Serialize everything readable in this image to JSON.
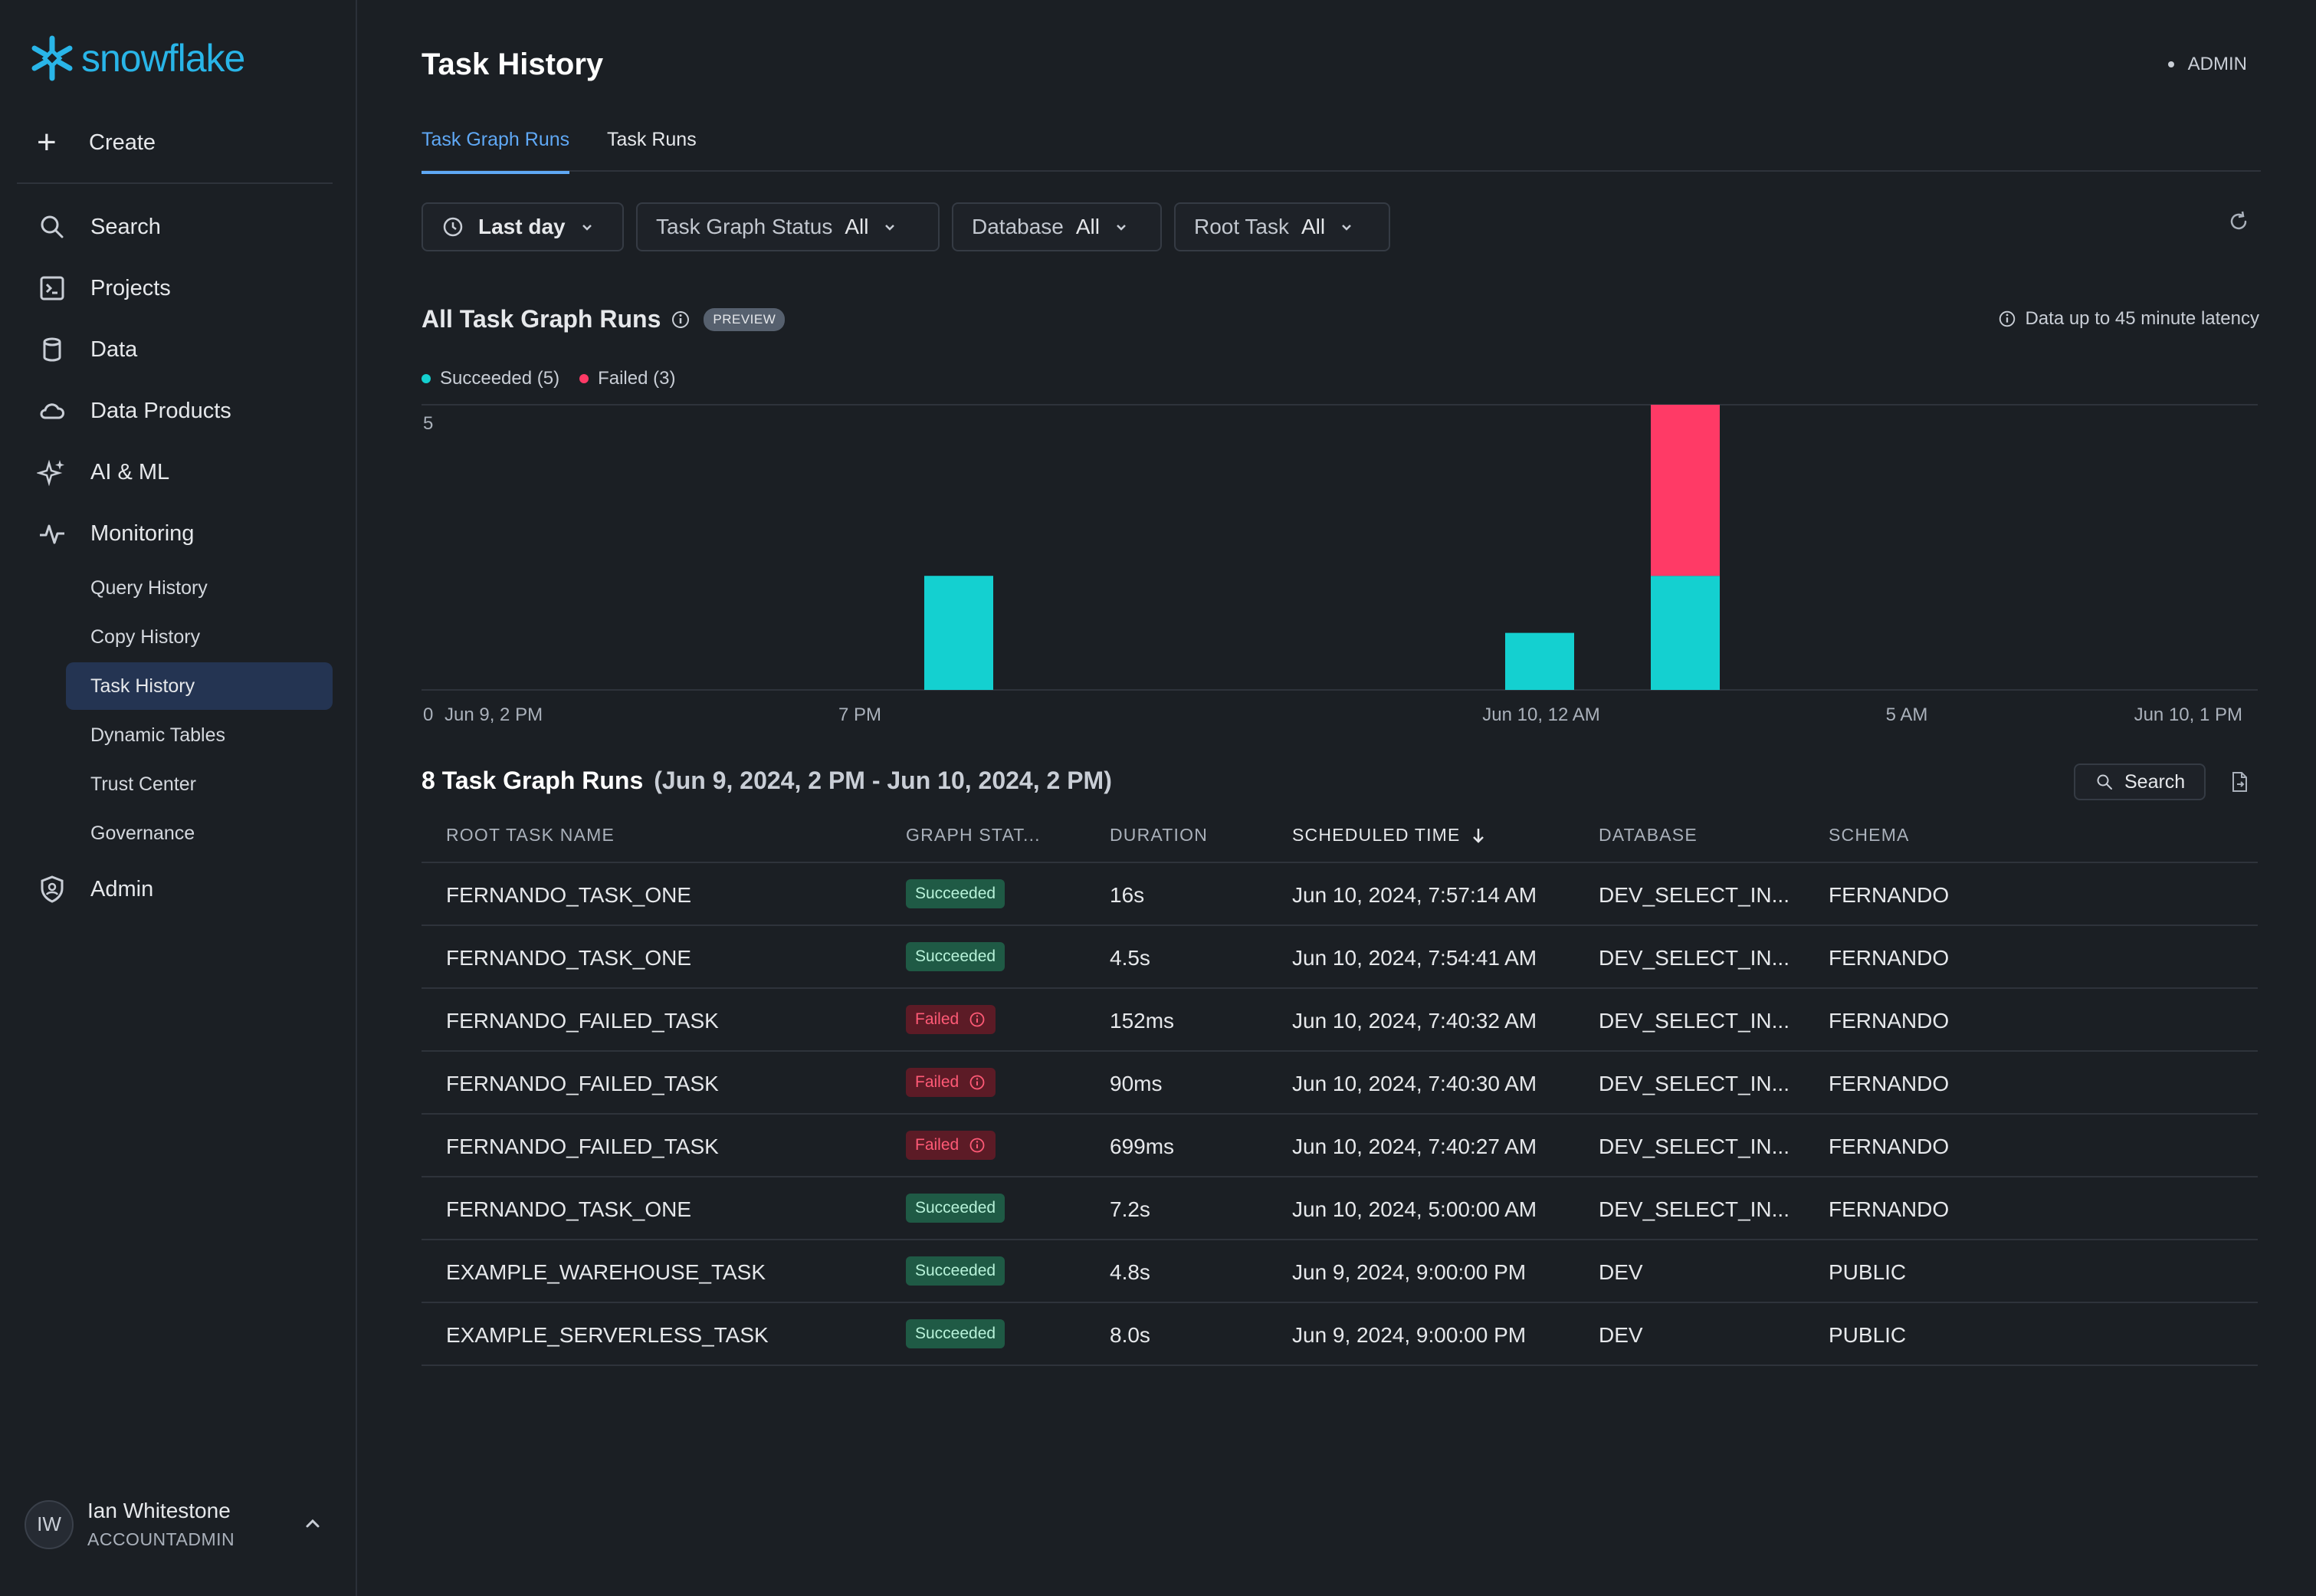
{
  "brand": {
    "name": "snowflake",
    "color": "#29b5e8"
  },
  "sidebar": {
    "create_label": "Create",
    "items": [
      {
        "label": "Search",
        "icon": "search-icon"
      },
      {
        "label": "Projects",
        "icon": "terminal-icon"
      },
      {
        "label": "Data",
        "icon": "database-icon"
      },
      {
        "label": "Data Products",
        "icon": "cloud-icon"
      },
      {
        "label": "AI & ML",
        "icon": "sparkle-icon"
      },
      {
        "label": "Monitoring",
        "icon": "activity-icon"
      },
      {
        "label": "Admin",
        "icon": "shield-icon"
      }
    ],
    "monitoring_sub": [
      "Query History",
      "Copy History",
      "Task History",
      "Dynamic Tables",
      "Trust Center",
      "Governance"
    ],
    "active_sub": "Task History",
    "user": {
      "initials": "IW",
      "name": "Ian Whitestone",
      "role": "ACCOUNTADMIN"
    }
  },
  "header": {
    "title": "Task History",
    "role": "ADMIN"
  },
  "tabs": [
    "Task Graph Runs",
    "Task Runs"
  ],
  "filters": {
    "time": "Last day",
    "status_label": "Task Graph Status",
    "status_value": "All",
    "database_label": "Database",
    "database_value": "All",
    "root_label": "Root Task",
    "root_value": "All"
  },
  "chart_section": {
    "title": "All Task Graph Runs",
    "preview_badge": "PREVIEW",
    "latency_note": "Data up to 45 minute latency"
  },
  "chart_data": {
    "type": "bar",
    "stacked": true,
    "series": [
      {
        "name": "Succeeded (5)",
        "color": "#14d0d0"
      },
      {
        "name": "Failed (3)",
        "color": "#ff3a66"
      }
    ],
    "bars": [
      {
        "time": "Jun 9, 9 PM",
        "succeeded": 2,
        "failed": 0
      },
      {
        "time": "Jun 10, 5 AM",
        "succeeded": 1,
        "failed": 0
      },
      {
        "time": "Jun 10, 7 AM",
        "succeeded": 2,
        "failed": 3
      }
    ],
    "y_ticks": [
      0,
      5
    ],
    "ylim": [
      0,
      5
    ],
    "x_ticks": [
      "Jun 9, 2 PM",
      "7 PM",
      "Jun 10, 12 AM",
      "5 AM",
      "Jun 10, 1 PM"
    ],
    "grid": true
  },
  "runs": {
    "title": "8 Task Graph Runs",
    "range": "(Jun 9, 2024, 2 PM - Jun 10, 2024, 2 PM)",
    "search_label": "Search",
    "columns": [
      "ROOT TASK NAME",
      "GRAPH STAT...",
      "DURATION",
      "SCHEDULED TIME",
      "DATABASE",
      "SCHEMA"
    ],
    "rows": [
      {
        "name": "FERNANDO_TASK_ONE",
        "status": "Succeeded",
        "duration": "16s",
        "time": "Jun 10, 2024, 7:57:14 AM",
        "database": "DEV_SELECT_IN...",
        "schema": "FERNANDO"
      },
      {
        "name": "FERNANDO_TASK_ONE",
        "status": "Succeeded",
        "duration": "4.5s",
        "time": "Jun 10, 2024, 7:54:41 AM",
        "database": "DEV_SELECT_IN...",
        "schema": "FERNANDO"
      },
      {
        "name": "FERNANDO_FAILED_TASK",
        "status": "Failed",
        "duration": "152ms",
        "time": "Jun 10, 2024, 7:40:32 AM",
        "database": "DEV_SELECT_IN...",
        "schema": "FERNANDO"
      },
      {
        "name": "FERNANDO_FAILED_TASK",
        "status": "Failed",
        "duration": "90ms",
        "time": "Jun 10, 2024, 7:40:30 AM",
        "database": "DEV_SELECT_IN...",
        "schema": "FERNANDO"
      },
      {
        "name": "FERNANDO_FAILED_TASK",
        "status": "Failed",
        "duration": "699ms",
        "time": "Jun 10, 2024, 7:40:27 AM",
        "database": "DEV_SELECT_IN...",
        "schema": "FERNANDO"
      },
      {
        "name": "FERNANDO_TASK_ONE",
        "status": "Succeeded",
        "duration": "7.2s",
        "time": "Jun 10, 2024, 5:00:00 AM",
        "database": "DEV_SELECT_IN...",
        "schema": "FERNANDO"
      },
      {
        "name": "EXAMPLE_WAREHOUSE_TASK",
        "status": "Succeeded",
        "duration": "4.8s",
        "time": "Jun 9, 2024, 9:00:00 PM",
        "database": "DEV",
        "schema": "PUBLIC"
      },
      {
        "name": "EXAMPLE_SERVERLESS_TASK",
        "status": "Succeeded",
        "duration": "8.0s",
        "time": "Jun 9, 2024, 9:00:00 PM",
        "database": "DEV",
        "schema": "PUBLIC"
      }
    ]
  }
}
